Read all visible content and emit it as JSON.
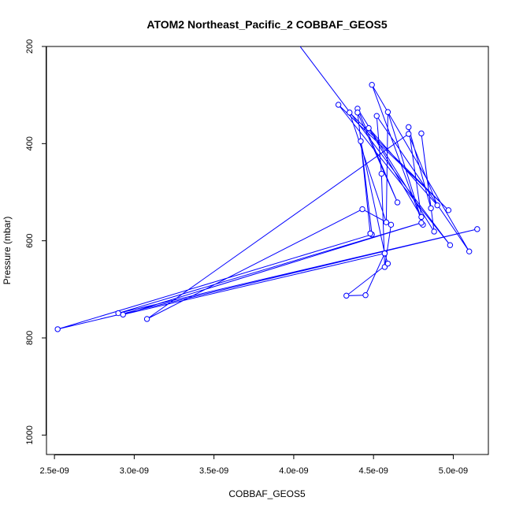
{
  "chart_data": {
    "type": "line",
    "title": "ATOM2 Northeast_Pacific_2 COBBAF_GEOS5",
    "xlabel": "COBBAF_GEOS5",
    "ylabel": "Pressure (mbar)",
    "xlim": [
      2.45e-09,
      5.22e-09
    ],
    "ylim": [
      1040,
      200
    ],
    "y_reversed": true,
    "grid": false,
    "legend": "none",
    "x_ticks": [
      {
        "value": 2.5e-09,
        "label": "2.5e-09"
      },
      {
        "value": 3e-09,
        "label": "3.0e-09"
      },
      {
        "value": 3.5e-09,
        "label": "3.5e-09"
      },
      {
        "value": 4e-09,
        "label": "4.0e-09"
      },
      {
        "value": 4.5e-09,
        "label": "4.5e-09"
      },
      {
        "value": 5e-09,
        "label": "5.0e-09"
      }
    ],
    "y_ticks": [
      {
        "value": 200,
        "label": "200"
      },
      {
        "value": 400,
        "label": "400"
      },
      {
        "value": 600,
        "label": "600"
      },
      {
        "value": 800,
        "label": "800"
      },
      {
        "value": 1000,
        "label": "1000"
      }
    ],
    "color": "#0000ff",
    "series": [
      {
        "line_start": {
          "x": 4.04e-09,
          "y": 200
        },
        "points": [
          {
            "x": 4.98e-09,
            "y": 609
          },
          {
            "x": 4.28e-09,
            "y": 320
          },
          {
            "x": 4.97e-09,
            "y": 537
          },
          {
            "x": 4.35e-09,
            "y": 336
          },
          {
            "x": 4.58e-09,
            "y": 562
          },
          {
            "x": 4.59e-09,
            "y": 335
          },
          {
            "x": 4.81e-09,
            "y": 567
          },
          {
            "x": 4.49e-09,
            "y": 279
          },
          {
            "x": 5.1e-09,
            "y": 622
          },
          {
            "x": 4.52e-09,
            "y": 343
          },
          {
            "x": 4.55e-09,
            "y": 462
          },
          {
            "x": 4.57e-09,
            "y": 654
          },
          {
            "x": 4.61e-09,
            "y": 567
          },
          {
            "x": 4.43e-09,
            "y": 535
          },
          {
            "x": 3.08e-09,
            "y": 761
          },
          {
            "x": 4.72e-09,
            "y": 380
          },
          {
            "x": 4.9e-09,
            "y": 527
          },
          {
            "x": 4.47e-09,
            "y": 368
          },
          {
            "x": 4.8e-09,
            "y": 551
          },
          {
            "x": 4.72e-09,
            "y": 366
          },
          {
            "x": 4.86e-09,
            "y": 533
          },
          {
            "x": 4.8e-09,
            "y": 379
          },
          {
            "x": 4.88e-09,
            "y": 581
          },
          {
            "x": 4.4e-09,
            "y": 328
          },
          {
            "x": 4.65e-09,
            "y": 521
          },
          {
            "x": 4.4e-09,
            "y": 336
          },
          {
            "x": 4.49e-09,
            "y": 587
          },
          {
            "x": 2.52e-09,
            "y": 782
          },
          {
            "x": 5.15e-09,
            "y": 576
          },
          {
            "x": 2.9e-09,
            "y": 749
          },
          {
            "x": 4.8e-09,
            "y": 563
          },
          {
            "x": 2.93e-09,
            "y": 752
          },
          {
            "x": 4.57e-09,
            "y": 626
          },
          {
            "x": 4.45e-09,
            "y": 712
          },
          {
            "x": 4.33e-09,
            "y": 713
          },
          {
            "x": 4.59e-09,
            "y": 647
          },
          {
            "x": 4.57e-09,
            "y": 626
          },
          {
            "x": 4.42e-09,
            "y": 395
          },
          {
            "x": 4.48e-09,
            "y": 585
          },
          {
            "x": 4.48e-09,
            "y": 585
          }
        ]
      }
    ]
  }
}
